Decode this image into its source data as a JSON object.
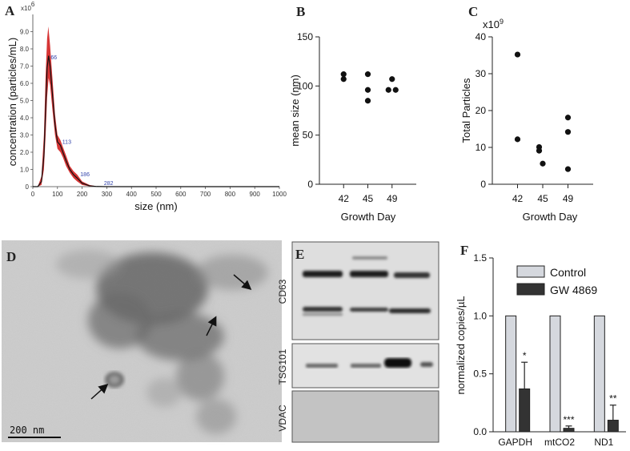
{
  "panels": {
    "A": "A",
    "B": "B",
    "C": "C",
    "D": "D",
    "E": "E",
    "F": "F"
  },
  "colors": {
    "nta_fill": "#d42a2a",
    "nta_line": "#111111",
    "control_bar": "#d5d8de",
    "gw_bar": "#333333",
    "points": "#111111"
  },
  "chart_data": [
    {
      "id": "A",
      "type": "area",
      "xlabel": "size (nm)",
      "ylabel": "concentration (particles/mL)",
      "y_multiplier": "x10",
      "y_multiplier_exp": "6",
      "xlim": [
        0,
        1000
      ],
      "ylim": [
        0,
        10
      ],
      "x_ticks": [
        0,
        100,
        200,
        300,
        400,
        500,
        600,
        700,
        800,
        900,
        1000
      ],
      "y_ticks": [
        "0",
        "1.0",
        "2.0",
        "3.0",
        "4.0",
        "5.0",
        "6.0",
        "7.0",
        "8.0",
        "9.0"
      ],
      "mean_curve": [
        [
          0,
          0
        ],
        [
          20,
          0
        ],
        [
          35,
          0.3
        ],
        [
          45,
          1.8
        ],
        [
          52,
          4.5
        ],
        [
          58,
          6.9
        ],
        [
          64,
          7.6
        ],
        [
          70,
          7.0
        ],
        [
          80,
          5.3
        ],
        [
          90,
          3.6
        ],
        [
          100,
          2.6
        ],
        [
          112,
          2.4
        ],
        [
          122,
          2.0
        ],
        [
          135,
          1.5
        ],
        [
          150,
          1.0
        ],
        [
          165,
          0.7
        ],
        [
          180,
          0.5
        ],
        [
          200,
          0.2
        ],
        [
          230,
          0.05
        ],
        [
          260,
          0.01
        ],
        [
          300,
          0
        ],
        [
          1000,
          0
        ]
      ],
      "upper_curve": [
        [
          0,
          0
        ],
        [
          20,
          0
        ],
        [
          35,
          0.6
        ],
        [
          45,
          3.0
        ],
        [
          52,
          6.5
        ],
        [
          58,
          8.6
        ],
        [
          63,
          9.3
        ],
        [
          70,
          8.2
        ],
        [
          80,
          6.2
        ],
        [
          90,
          4.2
        ],
        [
          100,
          3.0
        ],
        [
          112,
          2.7
        ],
        [
          122,
          2.3
        ],
        [
          135,
          1.8
        ],
        [
          150,
          1.2
        ],
        [
          165,
          0.9
        ],
        [
          180,
          0.7
        ],
        [
          200,
          0.3
        ],
        [
          230,
          0.1
        ],
        [
          260,
          0.02
        ],
        [
          300,
          0
        ],
        [
          1000,
          0
        ]
      ],
      "lower_curve": [
        [
          0,
          0
        ],
        [
          20,
          0
        ],
        [
          35,
          0.1
        ],
        [
          45,
          1.0
        ],
        [
          52,
          3.0
        ],
        [
          58,
          5.2
        ],
        [
          64,
          6.3
        ],
        [
          70,
          5.9
        ],
        [
          80,
          4.4
        ],
        [
          90,
          3.0
        ],
        [
          100,
          2.2
        ],
        [
          112,
          2.0
        ],
        [
          122,
          1.7
        ],
        [
          135,
          1.2
        ],
        [
          150,
          0.8
        ],
        [
          165,
          0.5
        ],
        [
          180,
          0.3
        ],
        [
          200,
          0.1
        ],
        [
          230,
          0.02
        ],
        [
          260,
          0
        ],
        [
          300,
          0
        ],
        [
          1000,
          0
        ]
      ],
      "peak_labels": [
        {
          "text": "66",
          "x": 66,
          "y": 7.4
        },
        {
          "text": "113",
          "x": 113,
          "y": 2.5
        },
        {
          "text": "186",
          "x": 186,
          "y": 0.6
        },
        {
          "text": "282",
          "x": 282,
          "y": 0.1
        }
      ]
    },
    {
      "id": "B",
      "type": "scatter",
      "xlabel": "Growth Day",
      "ylabel": "mean size (nm)",
      "categories": [
        "42",
        "45",
        "49"
      ],
      "ylim": [
        0,
        150
      ],
      "y_ticks": [
        0,
        50,
        100,
        150
      ],
      "points": [
        {
          "cat": "42",
          "y": 112
        },
        {
          "cat": "42",
          "y": 107
        },
        {
          "cat": "45",
          "y": 112
        },
        {
          "cat": "45",
          "y": 96
        },
        {
          "cat": "45",
          "y": 85
        },
        {
          "cat": "49",
          "y": 107
        },
        {
          "cat": "49",
          "y": 96
        },
        {
          "cat": "49",
          "y": 96
        }
      ]
    },
    {
      "id": "C",
      "type": "scatter",
      "xlabel": "Growth Day",
      "ylabel": "Total Particles",
      "y_multiplier": "x10",
      "y_multiplier_exp": "9",
      "categories": [
        "42",
        "45",
        "49"
      ],
      "ylim": [
        0,
        40
      ],
      "y_ticks": [
        0,
        10,
        20,
        30,
        40
      ],
      "points": [
        {
          "cat": "42",
          "y": 35.2
        },
        {
          "cat": "42",
          "y": 12.2
        },
        {
          "cat": "45",
          "y": 10.1
        },
        {
          "cat": "45",
          "y": 9.1
        },
        {
          "cat": "45",
          "y": 5.6
        },
        {
          "cat": "49",
          "y": 18.1
        },
        {
          "cat": "49",
          "y": 14.2
        },
        {
          "cat": "49",
          "y": 4.1
        }
      ]
    },
    {
      "id": "F",
      "type": "bar",
      "ylabel": "normalized copies/µL",
      "categories": [
        "GAPDH",
        "mtCO2",
        "ND1"
      ],
      "ylim": [
        0,
        1.5
      ],
      "y_ticks": [
        "0.0",
        "0.5",
        "1.0",
        "1.5"
      ],
      "legend_position": "top-right",
      "series": [
        {
          "name": "Control",
          "values": [
            1.0,
            1.0,
            1.0
          ],
          "errors": [
            0,
            0,
            0
          ]
        },
        {
          "name": "GW 4869",
          "values": [
            0.37,
            0.03,
            0.1
          ],
          "errors": [
            0.23,
            0.02,
            0.13
          ]
        }
      ],
      "significance": [
        "*",
        "***",
        "**"
      ]
    }
  ],
  "micrograph": {
    "scale_bar_label": "200 nm"
  },
  "western_blot": {
    "lanes": [
      "CD63",
      "TSG101",
      "VDAC"
    ]
  }
}
